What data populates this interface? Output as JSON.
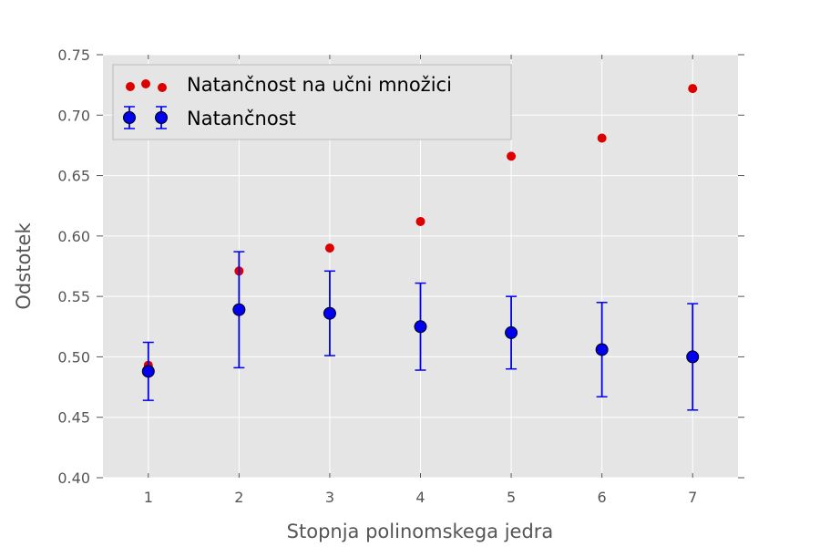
{
  "chart_data": {
    "type": "scatter",
    "title": "",
    "xlabel": "Stopnja polinomskega jedra",
    "ylabel": "Odstotek",
    "xlim": [
      0.5,
      7.5
    ],
    "ylim": [
      0.4,
      0.75
    ],
    "xticks": [
      "1",
      "2",
      "3",
      "4",
      "5",
      "6",
      "7"
    ],
    "yticks": [
      "0.40",
      "0.45",
      "0.50",
      "0.55",
      "0.60",
      "0.65",
      "0.70",
      "0.75"
    ],
    "grid": true,
    "legend_position": "top-left",
    "series": [
      {
        "name": "Natančnost na učni množici",
        "color": "#dd0000",
        "x": [
          1,
          2,
          3,
          4,
          5,
          6,
          7
        ],
        "y": [
          0.493,
          0.571,
          0.59,
          0.612,
          0.666,
          0.681,
          0.722
        ]
      },
      {
        "name": "Natančnost",
        "color": "#0000ee",
        "x": [
          1,
          2,
          3,
          4,
          5,
          6,
          7
        ],
        "y": [
          0.488,
          0.539,
          0.536,
          0.525,
          0.52,
          0.506,
          0.5
        ],
        "error": [
          0.024,
          0.048,
          0.035,
          0.036,
          0.03,
          0.039,
          0.044
        ]
      }
    ]
  }
}
